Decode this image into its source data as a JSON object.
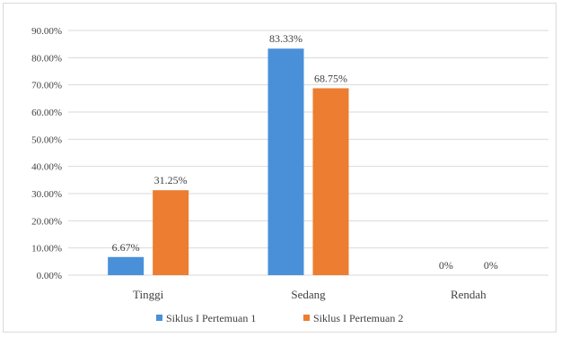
{
  "chart_data": {
    "type": "bar",
    "categories": [
      "Tinggi",
      "Sedang",
      "Rendah"
    ],
    "series": [
      {
        "name": "Siklus I Pertemuan 1",
        "color": "#4a90d9",
        "values": [
          6.67,
          83.33,
          0
        ],
        "labels": [
          "6.67%",
          "83.33%",
          "0%"
        ]
      },
      {
        "name": "Siklus I Pertemuan 2",
        "color": "#ed7d31",
        "values": [
          31.25,
          68.75,
          0
        ],
        "labels": [
          "31.25%",
          "68.75%",
          "0%"
        ]
      }
    ],
    "y_ticks": [
      {
        "value": 0,
        "label": "0.00%"
      },
      {
        "value": 10,
        "label": "10.00%"
      },
      {
        "value": 20,
        "label": "20.00%"
      },
      {
        "value": 30,
        "label": "30.00%"
      },
      {
        "value": 40,
        "label": "40.00%"
      },
      {
        "value": 50,
        "label": "50.00%"
      },
      {
        "value": 60,
        "label": "60.00%"
      },
      {
        "value": 70,
        "label": "70.00%"
      },
      {
        "value": 80,
        "label": "80.00%"
      },
      {
        "value": 90,
        "label": "90.00%"
      }
    ],
    "ylim": [
      0,
      90
    ],
    "title": "",
    "xlabel": "",
    "ylabel": "",
    "grid": true,
    "legend_position": "bottom",
    "gridline_color": "#d9d9d9"
  }
}
